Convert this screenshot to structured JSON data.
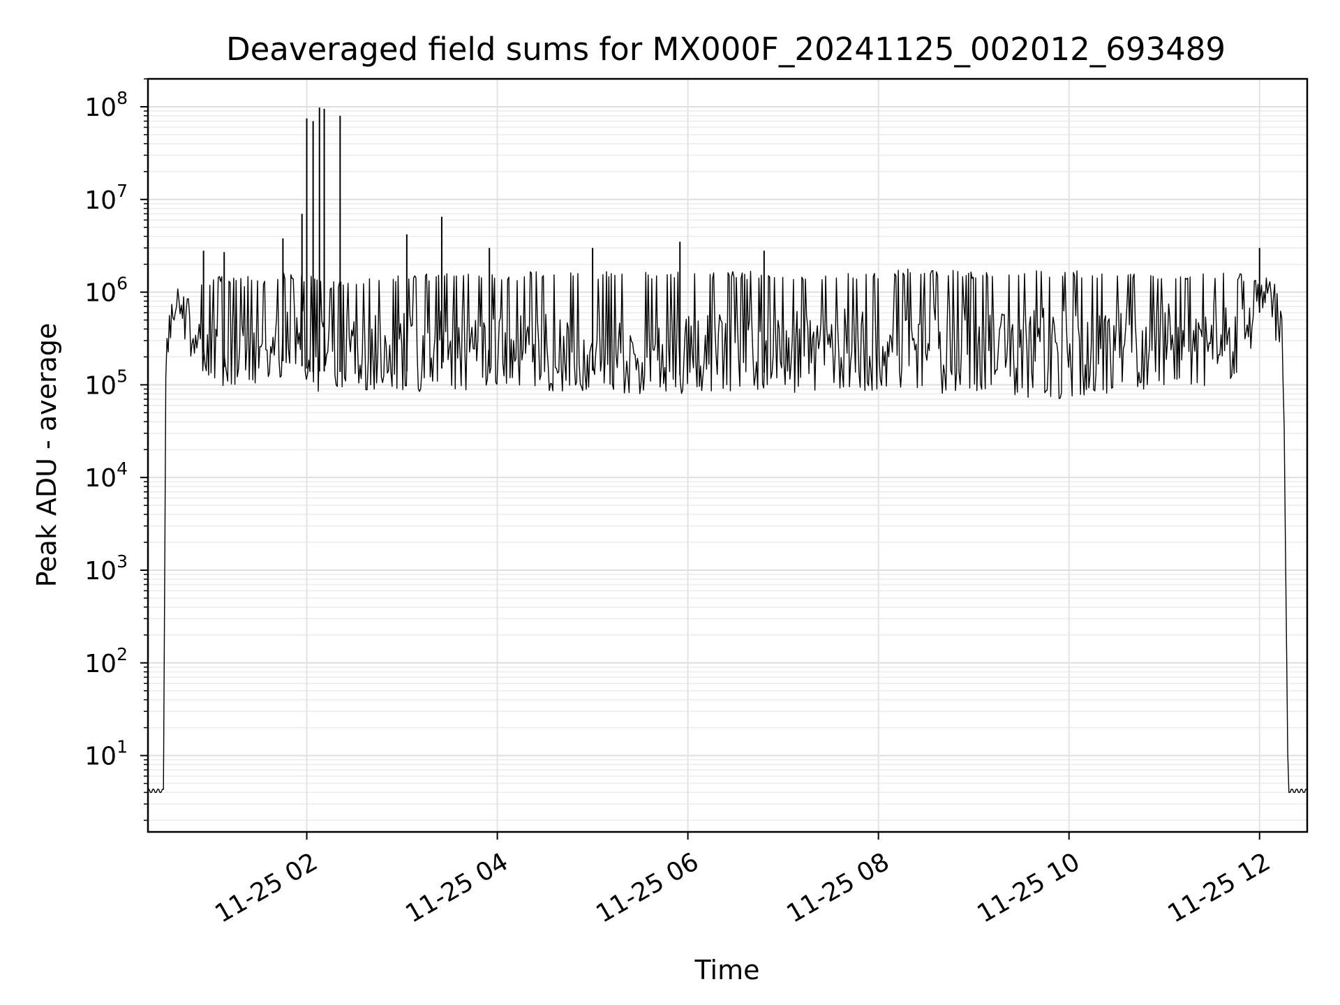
{
  "chart_data": {
    "type": "line",
    "title": "Deaveraged field sums for MX000F_20241125_002012_693489",
    "xlabel": "Time",
    "ylabel": "Peak ADU - average",
    "yscale": "log",
    "ylim": [
      1.5,
      200000000
    ],
    "xlim": [
      "2024-11-25 00:20",
      "2024-11-25 12:30"
    ],
    "grid": "major-and-minor",
    "legend": "none",
    "line_color": "#000000",
    "x_ticks": [
      {
        "value": "2024-11-25 02:00",
        "label": "11-25 02"
      },
      {
        "value": "2024-11-25 04:00",
        "label": "11-25 04"
      },
      {
        "value": "2024-11-25 06:00",
        "label": "11-25 06"
      },
      {
        "value": "2024-11-25 08:00",
        "label": "11-25 08"
      },
      {
        "value": "2024-11-25 10:00",
        "label": "11-25 10"
      },
      {
        "value": "2024-11-25 12:00",
        "label": "11-25 12"
      }
    ],
    "y_ticks": [
      {
        "value": 10,
        "base": "10",
        "exp": "1"
      },
      {
        "value": 100,
        "base": "10",
        "exp": "2"
      },
      {
        "value": 1000,
        "base": "10",
        "exp": "3"
      },
      {
        "value": 10000,
        "base": "10",
        "exp": "4"
      },
      {
        "value": 100000,
        "base": "10",
        "exp": "5"
      },
      {
        "value": 1000000,
        "base": "10",
        "exp": "6"
      },
      {
        "value": 10000000,
        "base": "10",
        "exp": "7"
      },
      {
        "value": 100000000,
        "base": "10",
        "exp": "8"
      }
    ],
    "series": [
      {
        "x": [
          "2024-11-25 00:20",
          "2024-11-25 00:30",
          "2024-11-25 00:31",
          "2024-11-25 00:33",
          "2024-11-25 00:35",
          "2024-11-25 00:38",
          "2024-11-25 00:42",
          "2024-11-25 00:45",
          "2024-11-25 00:50",
          "2024-11-25 00:55",
          "2024-11-25 01:00",
          "2024-11-25 01:05",
          "2024-11-25 01:10",
          "2024-11-25 01:15",
          "2024-11-25 01:20",
          "2024-11-25 01:25",
          "2024-11-25 01:30",
          "2024-11-25 01:35",
          "2024-11-25 01:40",
          "2024-11-25 01:45",
          "2024-11-25 01:50",
          "2024-11-25 01:55",
          "2024-11-25 02:00",
          "2024-11-25 02:05",
          "2024-11-25 02:10",
          "2024-11-25 02:15",
          "2024-11-25 02:20",
          "2024-11-25 02:25",
          "2024-11-25 02:30",
          "2024-11-25 02:40",
          "2024-11-25 02:50",
          "2024-11-25 03:00",
          "2024-11-25 03:10",
          "2024-11-25 03:20",
          "2024-11-25 03:25",
          "2024-11-25 03:30",
          "2024-11-25 03:35",
          "2024-11-25 03:40",
          "2024-11-25 03:50",
          "2024-11-25 04:00",
          "2024-11-25 04:10",
          "2024-11-25 04:20",
          "2024-11-25 04:30",
          "2024-11-25 04:40",
          "2024-11-25 04:50",
          "2024-11-25 05:00",
          "2024-11-25 05:10",
          "2024-11-25 05:20",
          "2024-11-25 05:30",
          "2024-11-25 05:40",
          "2024-11-25 05:50",
          "2024-11-25 06:00",
          "2024-11-25 06:10",
          "2024-11-25 06:20",
          "2024-11-25 06:30",
          "2024-11-25 06:40",
          "2024-11-25 06:50",
          "2024-11-25 07:00",
          "2024-11-25 07:10",
          "2024-11-25 07:20",
          "2024-11-25 07:30",
          "2024-11-25 07:40",
          "2024-11-25 07:50",
          "2024-11-25 08:00",
          "2024-11-25 08:10",
          "2024-11-25 08:20",
          "2024-11-25 08:30",
          "2024-11-25 08:40",
          "2024-11-25 08:50",
          "2024-11-25 09:00",
          "2024-11-25 09:10",
          "2024-11-25 09:20",
          "2024-11-25 09:30",
          "2024-11-25 09:40",
          "2024-11-25 09:50",
          "2024-11-25 10:00",
          "2024-11-25 10:10",
          "2024-11-25 10:20",
          "2024-11-25 10:30",
          "2024-11-25 10:40",
          "2024-11-25 10:50",
          "2024-11-25 11:00",
          "2024-11-25 11:10",
          "2024-11-25 11:20",
          "2024-11-25 11:30",
          "2024-11-25 11:40",
          "2024-11-25 11:50",
          "2024-11-25 12:00",
          "2024-11-25 12:05",
          "2024-11-25 12:10",
          "2024-11-25 12:15",
          "2024-11-25 12:18",
          "2024-11-25 12:22",
          "2024-11-25 12:30"
        ],
        "y": [
          4,
          4,
          100000,
          300000,
          600000,
          850000,
          1000000,
          700000,
          400000,
          300000,
          250000,
          200000,
          180000,
          170000,
          150000,
          160000,
          200000,
          180000,
          200000,
          250000,
          220000,
          300000,
          250000,
          200000,
          180000,
          140000,
          130000,
          150000,
          160000,
          170000,
          180000,
          200000,
          210000,
          220000,
          250000,
          450000,
          300000,
          220000,
          200000,
          190000,
          200000,
          170000,
          160000,
          150000,
          160000,
          150000,
          140000,
          130000,
          150000,
          140000,
          135000,
          140000,
          150000,
          160000,
          155000,
          160000,
          150000,
          170000,
          200000,
          220000,
          250000,
          300000,
          250000,
          270000,
          280000,
          300000,
          290000,
          310000,
          300000,
          320000,
          300000,
          310000,
          280000,
          260000,
          250000,
          200000,
          220000,
          250000,
          280000,
          300000,
          320000,
          350000,
          380000,
          400000,
          420000,
          450000,
          600000,
          1000000,
          1200000,
          800000,
          200000,
          4,
          4,
          4
        ],
        "envelope_high": [
          4,
          4,
          200000,
          500000,
          800000,
          1100000,
          1300000,
          1500000,
          1400000,
          1300000,
          1400000,
          1500000,
          1400000,
          1500000,
          1300000,
          1600000,
          1200000,
          1400000,
          1500000,
          1600000,
          1500000,
          1400000,
          1500000,
          1500000,
          1400000,
          1200000,
          1300000,
          1400000,
          1400000,
          1400000,
          1500000,
          1500000,
          1500000,
          1500000,
          1500000,
          1600000,
          1600000,
          1500000,
          1500000,
          1500000,
          1500000,
          1600000,
          1600000,
          1600000,
          1600000,
          1600000,
          1600000,
          1600000,
          1600000,
          1600000,
          1600000,
          1600000,
          1600000,
          1600000,
          1600000,
          1600000,
          1600000,
          1600000,
          1600000,
          1600000,
          1600000,
          1600000,
          1600000,
          1600000,
          1700000,
          1700000,
          1700000,
          1700000,
          1700000,
          1600000,
          1600000,
          1600000,
          1700000,
          1700000,
          1700000,
          1700000,
          1600000,
          1600000,
          1600000,
          1600000,
          1600000,
          1600000,
          1600000,
          1600000,
          1600000,
          1600000,
          1500000,
          1300000,
          1400000,
          1200000,
          500000,
          4,
          4,
          4
        ],
        "envelope_low": [
          4,
          4,
          60000,
          200000,
          400000,
          500000,
          350000,
          250000,
          180000,
          150000,
          120000,
          110000,
          100000,
          110000,
          100000,
          110000,
          95000,
          100000,
          110000,
          120000,
          120000,
          110000,
          100000,
          90000,
          95000,
          85000,
          90000,
          100000,
          100000,
          95000,
          100000,
          95000,
          90000,
          95000,
          100000,
          110000,
          95000,
          95000,
          100000,
          110000,
          105000,
          100000,
          95000,
          90000,
          85000,
          95000,
          90000,
          85000,
          80000,
          85000,
          80000,
          90000,
          85000,
          90000,
          95000,
          90000,
          90000,
          95000,
          90000,
          95000,
          100000,
          95000,
          90000,
          95000,
          100000,
          95000,
          90000,
          85000,
          90000,
          95000,
          90000,
          85000,
          80000,
          80000,
          75000,
          70000,
          80000,
          85000,
          90000,
          95000,
          90000,
          95000,
          100000,
          95000,
          100000,
          110000,
          150000,
          400000,
          600000,
          300000,
          100000,
          4,
          4,
          4
        ],
        "spikes": [
          {
            "x": "2024-11-25 00:55",
            "y": 2800000
          },
          {
            "x": "2024-11-25 01:08",
            "y": 2700000
          },
          {
            "x": "2024-11-25 01:45",
            "y": 3800000
          },
          {
            "x": "2024-11-25 01:57",
            "y": 7000000
          },
          {
            "x": "2024-11-25 02:00",
            "y": 75000000
          },
          {
            "x": "2024-11-25 02:04",
            "y": 70000000
          },
          {
            "x": "2024-11-25 02:08",
            "y": 98000000
          },
          {
            "x": "2024-11-25 02:11",
            "y": 95000000
          },
          {
            "x": "2024-11-25 02:21",
            "y": 80000000
          },
          {
            "x": "2024-11-25 03:03",
            "y": 4200000
          },
          {
            "x": "2024-11-25 03:25",
            "y": 6500000
          },
          {
            "x": "2024-11-25 03:55",
            "y": 3000000
          },
          {
            "x": "2024-11-25 05:00",
            "y": 3000000
          },
          {
            "x": "2024-11-25 05:55",
            "y": 3500000
          },
          {
            "x": "2024-11-25 06:48",
            "y": 2800000
          },
          {
            "x": "2024-11-25 12:00",
            "y": 3000000
          }
        ]
      }
    ]
  }
}
